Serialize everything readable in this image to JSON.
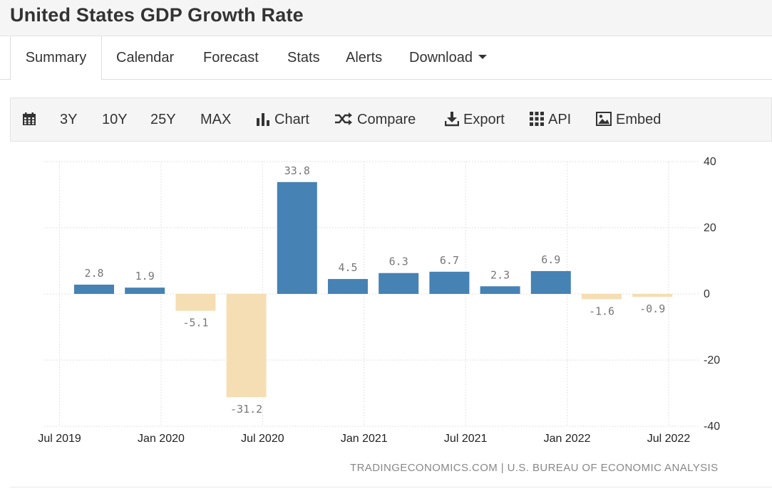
{
  "page": {
    "title": "United States GDP Growth Rate"
  },
  "tabs": [
    {
      "label": "Summary",
      "active": true
    },
    {
      "label": "Calendar"
    },
    {
      "label": "Forecast"
    },
    {
      "label": "Stats"
    },
    {
      "label": "Alerts"
    },
    {
      "label": "Download"
    }
  ],
  "toolbar": {
    "range_3y": "3Y",
    "range_10y": "10Y",
    "range_25y": "25Y",
    "range_max": "MAX",
    "chart": "Chart",
    "compare": "Compare",
    "export": "Export",
    "api": "API",
    "embed": "Embed"
  },
  "colors": {
    "positive": "#4682b4",
    "negative": "#f5deb3",
    "label": "#777777"
  },
  "chart_data": {
    "type": "bar",
    "categories": [
      "Q3 2019",
      "Q4 2019",
      "Q1 2020",
      "Q2 2020",
      "Q3 2020",
      "Q4 2020",
      "Q1 2021",
      "Q2 2021",
      "Q3 2021",
      "Q4 2021",
      "Q1 2022",
      "Q2 2022"
    ],
    "values": [
      2.8,
      1.9,
      -5.1,
      -31.2,
      33.8,
      4.5,
      6.3,
      6.7,
      2.3,
      6.9,
      -1.6,
      -0.9
    ],
    "data_labels": [
      "2.8",
      "1.9",
      "-5.1",
      "-31.2",
      "33.8",
      "4.5",
      "6.3",
      "6.7",
      "2.3",
      "6.9",
      "-1.6",
      "-0.9"
    ],
    "x_tick_labels": [
      "Jul 2019",
      "Jan 2020",
      "Jul 2020",
      "Jan 2021",
      "Jul 2021",
      "Jan 2022",
      "Jul 2022"
    ],
    "y_ticks": [
      40,
      20,
      0,
      -20,
      -40
    ],
    "ylim": [
      -40,
      40
    ],
    "y_axis_position": "right",
    "grid": true,
    "source": "TRADINGECONOMICS.COM | U.S. BUREAU OF ECONOMIC ANALYSIS"
  }
}
